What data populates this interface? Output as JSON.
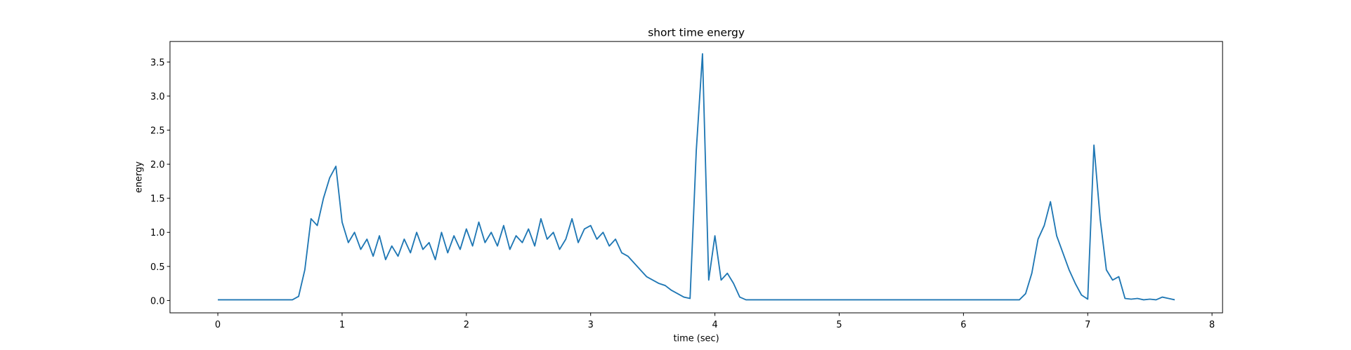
{
  "chart_data": {
    "type": "line",
    "title": "short time energy",
    "xlabel": "time (sec)",
    "ylabel": "energy",
    "color": "#1f77b4",
    "x": [
      0,
      0.05,
      0.1,
      0.15,
      0.2,
      0.25,
      0.3,
      0.35,
      0.4,
      0.45,
      0.5,
      0.55,
      0.6,
      0.65,
      0.7,
      0.75,
      0.8,
      0.85,
      0.9,
      0.95,
      1,
      1.05,
      1.1,
      1.15,
      1.2,
      1.25,
      1.3,
      1.35,
      1.4,
      1.45,
      1.5,
      1.55,
      1.6,
      1.65,
      1.7,
      1.75,
      1.8,
      1.85,
      1.9,
      1.95,
      2,
      2.05,
      2.1,
      2.15,
      2.2,
      2.25,
      2.3,
      2.35,
      2.4,
      2.45,
      2.5,
      2.55,
      2.6,
      2.65,
      2.7,
      2.75,
      2.8,
      2.85,
      2.9,
      2.95,
      3,
      3.05,
      3.1,
      3.15,
      3.2,
      3.25,
      3.3,
      3.35,
      3.4,
      3.45,
      3.5,
      3.55,
      3.6,
      3.65,
      3.7,
      3.75,
      3.8,
      3.85,
      3.9,
      3.95,
      4,
      4.05,
      4.1,
      4.15,
      4.2,
      4.25,
      4.3,
      4.35,
      4.4,
      4.45,
      4.5,
      4.55,
      4.6,
      4.65,
      4.7,
      4.75,
      4.8,
      4.85,
      4.9,
      4.95,
      5,
      5.05,
      5.1,
      5.15,
      5.2,
      5.25,
      5.3,
      5.35,
      5.4,
      5.45,
      5.5,
      5.55,
      5.6,
      5.65,
      5.7,
      5.75,
      5.8,
      5.85,
      5.9,
      5.95,
      6,
      6.05,
      6.1,
      6.15,
      6.2,
      6.25,
      6.3,
      6.35,
      6.4,
      6.45,
      6.5,
      6.55,
      6.6,
      6.65,
      6.7,
      6.75,
      6.8,
      6.85,
      6.9,
      6.95,
      7,
      7.05,
      7.1,
      7.15,
      7.2,
      7.25,
      7.3,
      7.35,
      7.4,
      7.45,
      7.5,
      7.55,
      7.6,
      7.65,
      7.7
    ],
    "values": [
      0.01,
      0.01,
      0.01,
      0.01,
      0.01,
      0.01,
      0.01,
      0.01,
      0.01,
      0.01,
      0.01,
      0.01,
      0.01,
      0.06,
      0.45,
      1.2,
      1.1,
      1.5,
      1.8,
      1.97,
      1.15,
      0.85,
      1.0,
      0.75,
      0.9,
      0.65,
      0.95,
      0.6,
      0.8,
      0.65,
      0.9,
      0.7,
      1.0,
      0.75,
      0.85,
      0.6,
      1.0,
      0.7,
      0.95,
      0.75,
      1.05,
      0.8,
      1.15,
      0.85,
      1.0,
      0.8,
      1.1,
      0.75,
      0.95,
      0.85,
      1.05,
      0.8,
      1.2,
      0.9,
      1.0,
      0.75,
      0.9,
      1.2,
      0.85,
      1.05,
      1.1,
      0.9,
      1.0,
      0.8,
      0.9,
      0.7,
      0.65,
      0.55,
      0.45,
      0.35,
      0.3,
      0.25,
      0.22,
      0.15,
      0.1,
      0.05,
      0.03,
      2.2,
      3.62,
      0.3,
      0.95,
      0.3,
      0.4,
      0.25,
      0.05,
      0.01,
      0.01,
      0.01,
      0.01,
      0.01,
      0.01,
      0.01,
      0.01,
      0.01,
      0.01,
      0.01,
      0.01,
      0.01,
      0.01,
      0.01,
      0.01,
      0.01,
      0.01,
      0.01,
      0.01,
      0.01,
      0.01,
      0.01,
      0.01,
      0.01,
      0.01,
      0.01,
      0.01,
      0.01,
      0.01,
      0.01,
      0.01,
      0.01,
      0.01,
      0.01,
      0.01,
      0.01,
      0.01,
      0.01,
      0.01,
      0.01,
      0.01,
      0.01,
      0.01,
      0.01,
      0.1,
      0.4,
      0.9,
      1.1,
      1.45,
      0.95,
      0.7,
      0.45,
      0.25,
      0.08,
      0.02,
      2.28,
      1.2,
      0.45,
      0.3,
      0.35,
      0.03,
      0.02,
      0.03,
      0.01,
      0.02,
      0.01,
      0.05,
      0.03,
      0.01
    ],
    "xlim": [
      -0.385,
      8.085
    ],
    "xticks": [
      0,
      1,
      2,
      3,
      4,
      5,
      6,
      7,
      8
    ],
    "ylim": [
      -0.181,
      3.801
    ],
    "yticks": [
      {
        "value": 0,
        "label": "0.0"
      },
      {
        "value": 0.5,
        "label": "0.5"
      },
      {
        "value": 1,
        "label": "1.0"
      },
      {
        "value": 1.5,
        "label": "1.5"
      },
      {
        "value": 2,
        "label": "2.0"
      },
      {
        "value": 2.5,
        "label": "2.5"
      },
      {
        "value": 3,
        "label": "3.0"
      },
      {
        "value": 3.5,
        "label": "3.5"
      }
    ]
  }
}
